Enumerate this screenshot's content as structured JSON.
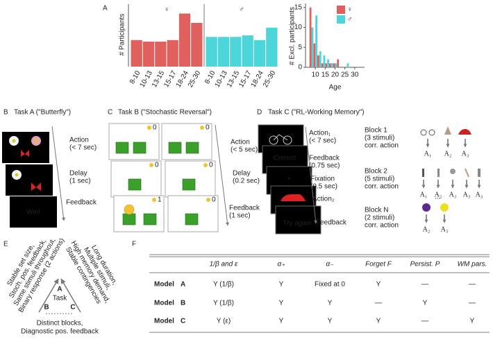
{
  "chart_data": [
    {
      "type": "bar",
      "y_label": "# Participants",
      "categories": [
        "8-10",
        "10-13",
        "13-15",
        "15-17",
        "18-24",
        "25-30"
      ],
      "series": [
        {
          "name": "♀",
          "color": "#e0605e",
          "values": [
            17,
            16,
            16,
            17,
            34,
            28
          ]
        },
        {
          "name": "♂",
          "color": "#4dd6d9",
          "values": [
            19,
            19,
            19,
            20,
            17,
            25
          ]
        }
      ],
      "ylim": [
        0,
        40
      ]
    },
    {
      "type": "bar",
      "y_label": "# Excl. participants",
      "x_label": "Age",
      "x": [
        8,
        10,
        12,
        14,
        16,
        18,
        20,
        22,
        26
      ],
      "series": [
        {
          "name": "♀",
          "color": "#e0605e",
          "values": [
            15,
            6,
            3,
            1,
            1,
            1,
            1,
            2,
            0
          ]
        },
        {
          "name": "♂",
          "color": "#4dd6d9",
          "values": [
            10,
            13,
            4,
            3,
            2,
            1,
            1,
            0,
            1
          ]
        }
      ],
      "xlim": [
        5,
        35
      ],
      "xticks": [
        10,
        15,
        20,
        25,
        30
      ],
      "ylim": [
        0,
        16
      ],
      "yticks": [
        0,
        5,
        10,
        15
      ],
      "legend": "top-right"
    }
  ],
  "panels": {
    "A": {
      "label": "A"
    },
    "B": {
      "label": "B",
      "title": "Task A (\"Butterfly\")",
      "steps": [
        [
          "Action",
          "(< 7 sec)"
        ],
        [
          "Delay",
          "(1 sec)"
        ],
        [
          "Feedback"
        ]
      ],
      "screen_text": "Win!"
    },
    "C": {
      "label": "C",
      "title": "Task B (\"Stochastic Reversal\")",
      "steps": [
        [
          "Action",
          "(< 5 sec)"
        ],
        [
          "Delay",
          "(0.2 sec)"
        ],
        [
          "Feedback",
          "(1 sec)"
        ]
      ],
      "coins": [
        0,
        0,
        0,
        0,
        1,
        0
      ]
    },
    "D": {
      "label": "D",
      "title": "Task C (\"RL-Working Memory\")",
      "steps": [
        [
          "Action₁",
          "(< 7 sec)"
        ],
        [
          "Feedback",
          "(0.75 sec)"
        ],
        [
          "Fixation",
          "(0.5 sec)"
        ],
        [
          "Action₂"
        ],
        [
          "Feedback"
        ]
      ],
      "screen_texts": [
        "Correct",
        "+",
        "Try again"
      ],
      "blocks": [
        {
          "lines": [
            "Block 1",
            "(3 stimuli)",
            "corr. action"
          ],
          "actions": [
            "A₁",
            "A₂",
            "A₃"
          ]
        },
        {
          "lines": [
            "Block 2",
            "(5 stimuli)",
            "corr. action"
          ],
          "actions": [
            "A₁",
            "A₂",
            "A₃",
            "A₃",
            "A₃"
          ]
        },
        {
          "lines": [
            "Block N",
            "(2 stimuli)",
            "corr. action"
          ],
          "actions": [
            "A₂",
            "A₃"
          ]
        }
      ],
      "ellipsis": "..."
    },
    "E": {
      "label": "E",
      "center": "Task",
      "corners": [
        "A",
        "B",
        "C"
      ],
      "left": [
        "Stable set size,",
        "Stoch. pos. feedback,",
        "Same stimuli throughout,",
        "Binary response (2 actions)"
      ],
      "right": [
        "Long duration,",
        "Multiple stimuli,",
        "High memory demand,",
        "Stable contingencies"
      ],
      "bottom": [
        "Distinct blocks,",
        "Diagnostic pos. feedback"
      ]
    },
    "F": {
      "label": "F",
      "columns": [
        "1/β and ε",
        "α₊",
        "α₋",
        "Forget F",
        "Persist. P",
        "WM pars."
      ],
      "rows": [
        {
          "model": "Model",
          "letter": "A",
          "cells": [
            "Y (1/β)",
            "Y",
            "Fixed at 0",
            "Y",
            "—",
            "—"
          ]
        },
        {
          "model": "Model",
          "letter": "B",
          "cells": [
            "Y (1/β)",
            "Y",
            "Y",
            "—",
            "Y",
            "—"
          ]
        },
        {
          "model": "Model",
          "letter": "C",
          "cells": [
            "Y (ε)",
            "Y",
            "Y",
            "Y",
            "—",
            "Y"
          ]
        }
      ]
    }
  }
}
